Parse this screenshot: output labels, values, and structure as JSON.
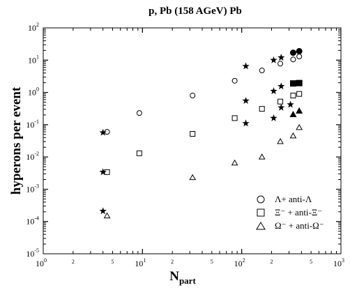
{
  "chart_data": {
    "type": "scatter",
    "title": "p, Pb  (158 AGeV)  Pb",
    "xlabel_main": "N",
    "xlabel_sub": "part",
    "ylabel": "hyperons per event",
    "x_scale": "log",
    "y_scale": "log",
    "xlim": [
      1,
      1000
    ],
    "ylim": [
      1e-05,
      100
    ],
    "grid": false,
    "legend_position": "bottom-right",
    "x_ticks": [
      {
        "v": 1,
        "label": "10",
        "exp": "0"
      },
      {
        "v": 10,
        "label": "10",
        "exp": "1"
      },
      {
        "v": 100,
        "label": "10",
        "exp": "2"
      },
      {
        "v": 1000,
        "label": "10",
        "exp": "3"
      }
    ],
    "x_minor_labels": [
      {
        "v": 2,
        "label": "2"
      },
      {
        "v": 5,
        "label": "5"
      },
      {
        "v": 20,
        "label": "2"
      },
      {
        "v": 50,
        "label": "5"
      },
      {
        "v": 200,
        "label": "2"
      },
      {
        "v": 500,
        "label": "5"
      }
    ],
    "y_ticks": [
      {
        "v": 1e-05,
        "label": "10",
        "exp": "-5"
      },
      {
        "v": 0.0001,
        "label": "10",
        "exp": "-4"
      },
      {
        "v": 0.001,
        "label": "10",
        "exp": "-3"
      },
      {
        "v": 0.01,
        "label": "10",
        "exp": "-2"
      },
      {
        "v": 0.1,
        "label": "10",
        "exp": "-1"
      },
      {
        "v": 1,
        "label": "10",
        "exp": "0"
      },
      {
        "v": 10,
        "label": "10",
        "exp": "1"
      },
      {
        "v": 100,
        "label": "10",
        "exp": "2"
      }
    ],
    "series": [
      {
        "name": "Λ+ anti-Λ",
        "marker": "circle-open",
        "points": [
          [
            4.4,
            0.06
          ],
          [
            9.3,
            0.23
          ],
          [
            32,
            0.8
          ],
          [
            85,
            2.3
          ],
          [
            160,
            4.8
          ],
          [
            245,
            7.8
          ],
          [
            330,
            10.5
          ],
          [
            380,
            13.0
          ]
        ]
      },
      {
        "name": "Ξ⁻ + anti-Ξ⁻",
        "marker": "square-open",
        "points": [
          [
            4.4,
            0.0034
          ],
          [
            9.3,
            0.013
          ],
          [
            32,
            0.052
          ],
          [
            85,
            0.16
          ],
          [
            160,
            0.31
          ],
          [
            245,
            0.52
          ],
          [
            330,
            0.8
          ],
          [
            380,
            0.9
          ]
        ]
      },
      {
        "name": "Ω⁻ + anti-Ω⁻",
        "marker": "triangle-open",
        "points": [
          [
            4.4,
            0.00015
          ],
          [
            32,
            0.0023
          ],
          [
            85,
            0.0065
          ],
          [
            160,
            0.01
          ],
          [
            245,
            0.03
          ],
          [
            330,
            0.045
          ],
          [
            380,
            0.082
          ]
        ]
      },
      {
        "marker": "star",
        "points": [
          [
            4.0,
            0.057
          ],
          [
            4.0,
            0.0034
          ],
          [
            4.0,
            0.00021
          ],
          [
            110,
            6.5
          ],
          [
            210,
            10.0
          ],
          [
            250,
            12.0
          ],
          [
            110,
            0.55
          ],
          [
            210,
            1.1
          ],
          [
            250,
            1.55
          ],
          [
            110,
            0.11
          ],
          [
            210,
            0.16
          ],
          [
            250,
            0.34
          ],
          [
            310,
            0.42
          ]
        ]
      },
      {
        "marker": "circle-filled",
        "points": [
          [
            330,
            17.0
          ],
          [
            380,
            19.0
          ]
        ]
      },
      {
        "marker": "square-filled",
        "points": [
          [
            330,
            1.9
          ],
          [
            380,
            1.95
          ]
        ]
      },
      {
        "marker": "triangle-filled",
        "points": [
          [
            330,
            0.21
          ],
          [
            380,
            0.27
          ]
        ]
      }
    ]
  }
}
